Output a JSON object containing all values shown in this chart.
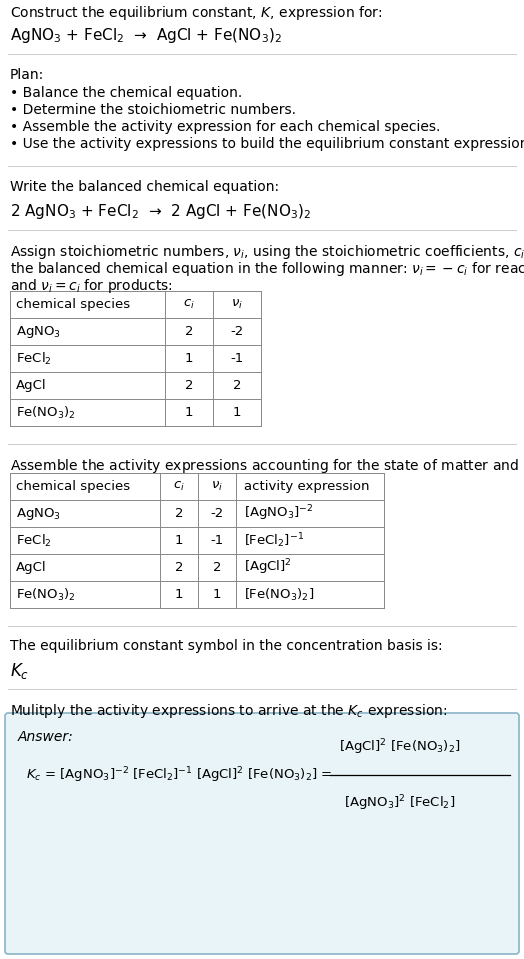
{
  "bg_color": "#ffffff",
  "text_color": "#000000",
  "title_line1": "Construct the equilibrium constant, $K$, expression for:",
  "title_line2": "AgNO$_3$ + FeCl$_2$  →  AgCl + Fe(NO$_3$)$_2$",
  "plan_header": "Plan:",
  "plan_items": [
    "• Balance the chemical equation.",
    "• Determine the stoichiometric numbers.",
    "• Assemble the activity expression for each chemical species.",
    "• Use the activity expressions to build the equilibrium constant expression."
  ],
  "balanced_header": "Write the balanced chemical equation:",
  "balanced_eq": "2 AgNO$_3$ + FeCl$_2$  →  2 AgCl + Fe(NO$_3$)$_2$",
  "stoich_text1": "Assign stoichiometric numbers, $\\nu_i$, using the stoichiometric coefficients, $c_i$, from",
  "stoich_text2": "the balanced chemical equation in the following manner: $\\nu_i = -c_i$ for reactants",
  "stoich_text3": "and $\\nu_i = c_i$ for products:",
  "table1_headers": [
    "chemical species",
    "$c_i$",
    "$\\nu_i$"
  ],
  "table1_col1": [
    "AgNO$_3$",
    "FeCl$_2$",
    "AgCl",
    "Fe(NO$_3$)$_2$"
  ],
  "table1_col2": [
    "2",
    "1",
    "2",
    "1"
  ],
  "table1_col3": [
    "-2",
    "-1",
    "2",
    "1"
  ],
  "activity_header": "Assemble the activity expressions accounting for the state of matter and $\\nu_i$:",
  "table2_headers": [
    "chemical species",
    "$c_i$",
    "$\\nu_i$",
    "activity expression"
  ],
  "table2_col1": [
    "AgNO$_3$",
    "FeCl$_2$",
    "AgCl",
    "Fe(NO$_3$)$_2$"
  ],
  "table2_col2": [
    "2",
    "1",
    "2",
    "1"
  ],
  "table2_col3": [
    "-2",
    "-1",
    "2",
    "1"
  ],
  "table2_col4": [
    "[AgNO$_3$]$^{-2}$",
    "[FeCl$_2$]$^{-1}$",
    "[AgCl]$^2$",
    "[Fe(NO$_3$)$_2$]"
  ],
  "kc_header": "The equilibrium constant symbol in the concentration basis is:",
  "kc_symbol": "$K_c$",
  "multiply_header": "Mulitply the activity expressions to arrive at the $K_c$ expression:",
  "answer_label": "Answer:",
  "kc_eq_left": "$K_c$ = [AgNO$_3$]$^{-2}$ [FeCl$_2$]$^{-1}$ [AgCl]$^2$ [Fe(NO$_3$)$_2$] = ",
  "frac_num": "[AgCl]$^2$ [Fe(NO$_3$)$_2$]",
  "frac_den": "[AgNO$_3$]$^2$ [FeCl$_2$]",
  "answer_box_color": "#e8f4f8",
  "answer_box_border": "#8ab4c8",
  "separator_color": "#cccccc",
  "table_border_color": "#888888"
}
